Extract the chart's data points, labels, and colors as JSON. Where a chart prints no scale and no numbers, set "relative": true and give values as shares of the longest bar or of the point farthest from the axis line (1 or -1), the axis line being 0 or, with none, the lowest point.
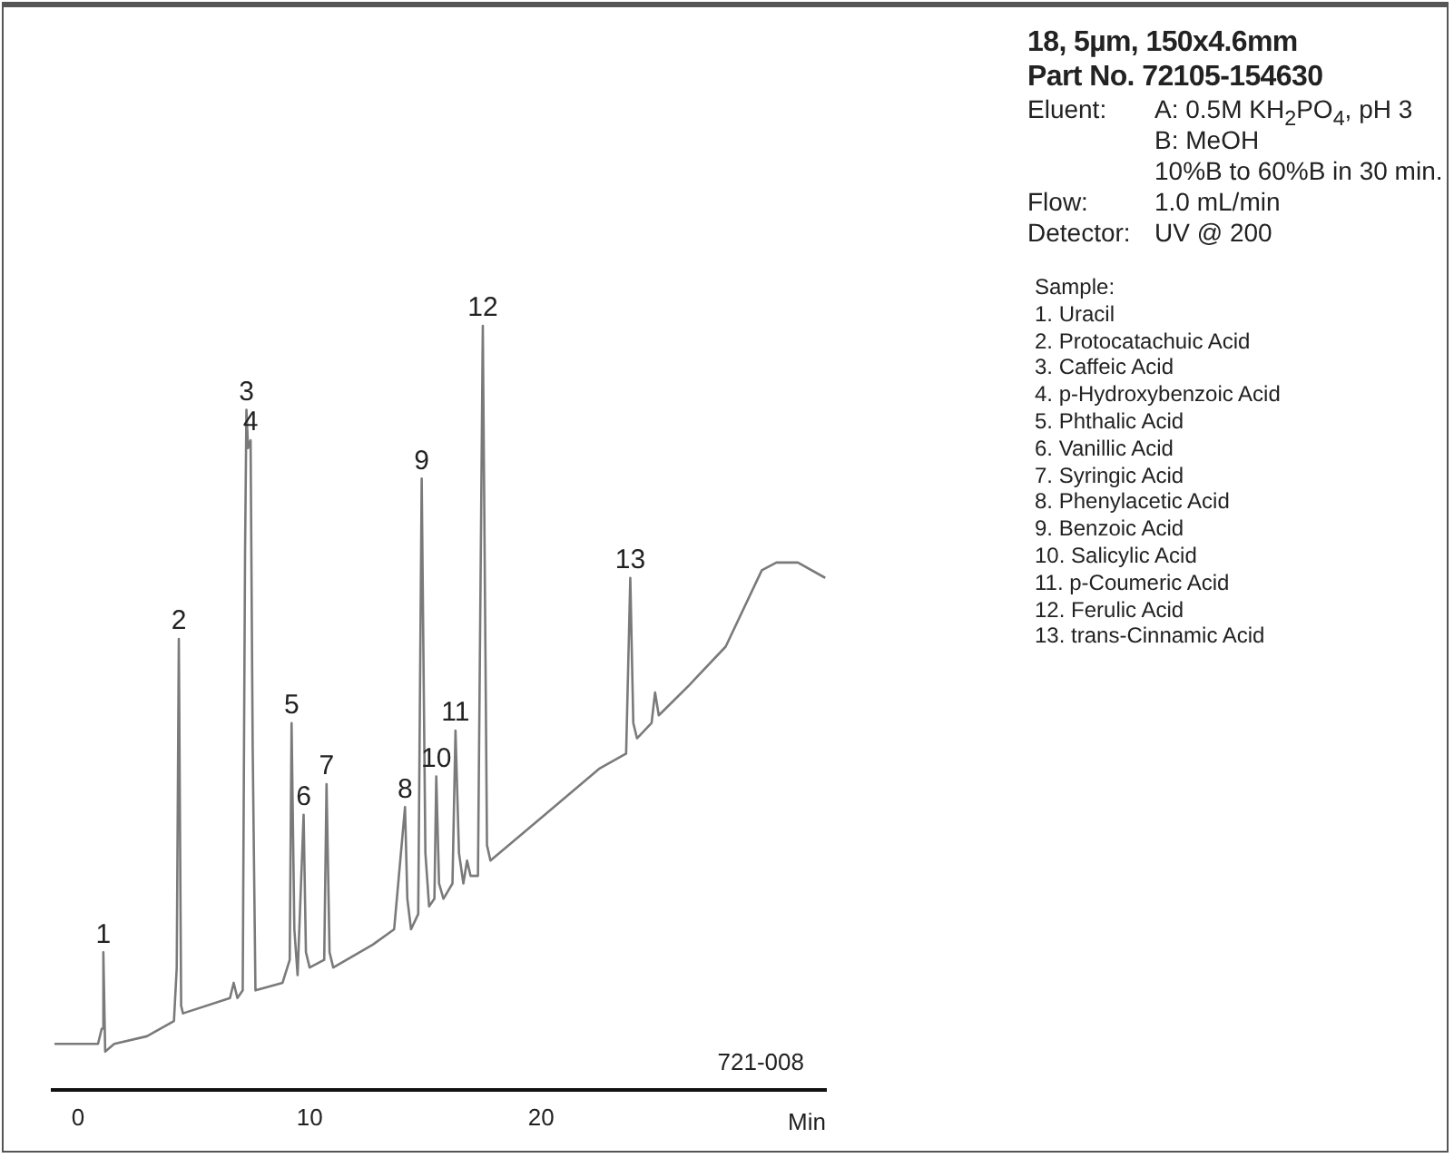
{
  "chart_data": {
    "type": "line",
    "title": "18, 5µm, 150x4.6mm",
    "subtitle": "Part No. 72105-154630",
    "xlabel": "Min",
    "relative": true,
    "grid": false,
    "legend": false,
    "marker": "none",
    "line_style": "solid",
    "xlim": [
      -1.1,
      32.3
    ],
    "xticks": [
      0,
      10,
      20
    ],
    "series": [
      {
        "color": "#7a7a7a",
        "x": [
          -1.02,
          0.86,
          1.02,
          1.09,
          1.17,
          1.56,
          2.97,
          4.14,
          4.26,
          4.35,
          4.45,
          4.53,
          6.56,
          6.72,
          6.88,
          7.11,
          7.21,
          7.27,
          7.34,
          7.45,
          7.54,
          7.66,
          8.83,
          9.14,
          9.22,
          9.34,
          9.48,
          9.74,
          9.84,
          10.0,
          10.63,
          10.73,
          10.86,
          11.02,
          12.73,
          13.65,
          14.12,
          14.22,
          14.38,
          14.69,
          14.84,
          15.0,
          15.16,
          15.39,
          15.47,
          15.59,
          15.78,
          16.17,
          16.3,
          16.45,
          16.64,
          16.8,
          16.95,
          17.27,
          17.48,
          17.66,
          17.81,
          20.16,
          22.5,
          23.67,
          23.85,
          23.98,
          24.14,
          24.77,
          24.92,
          25.08,
          26.41,
          27.97,
          29.53,
          30.16,
          31.09,
          32.27
        ],
        "values": [
          0.06,
          0.06,
          0.08,
          0.18,
          0.05,
          0.06,
          0.07,
          0.09,
          0.16,
          0.59,
          0.11,
          0.1,
          0.12,
          0.14,
          0.12,
          0.13,
          0.7,
          0.89,
          0.84,
          0.85,
          0.45,
          0.13,
          0.14,
          0.17,
          0.48,
          0.21,
          0.15,
          0.36,
          0.18,
          0.16,
          0.17,
          0.4,
          0.18,
          0.16,
          0.19,
          0.21,
          0.37,
          0.25,
          0.21,
          0.23,
          0.8,
          0.31,
          0.24,
          0.25,
          0.41,
          0.27,
          0.25,
          0.27,
          0.47,
          0.31,
          0.27,
          0.3,
          0.28,
          0.28,
          1.0,
          0.32,
          0.3,
          0.36,
          0.42,
          0.44,
          0.67,
          0.48,
          0.46,
          0.48,
          0.52,
          0.49,
          0.53,
          0.58,
          0.68,
          0.69,
          0.69,
          0.67
        ]
      }
    ],
    "annotations": [
      {
        "text": "1",
        "x": 1.09,
        "y": 0.18
      },
      {
        "text": "2",
        "x": 4.35,
        "y": 0.59
      },
      {
        "text": "3",
        "x": 7.27,
        "y": 0.89
      },
      {
        "text": "4",
        "x": 7.45,
        "y": 0.85
      },
      {
        "text": "5",
        "x": 9.22,
        "y": 0.48
      },
      {
        "text": "6",
        "x": 9.74,
        "y": 0.36
      },
      {
        "text": "7",
        "x": 10.73,
        "y": 0.4
      },
      {
        "text": "8",
        "x": 14.12,
        "y": 0.37
      },
      {
        "text": "9",
        "x": 14.84,
        "y": 0.8
      },
      {
        "text": "10",
        "x": 15.47,
        "y": 0.41
      },
      {
        "text": "11",
        "x": 16.3,
        "y": 0.47
      },
      {
        "text": "12",
        "x": 17.48,
        "y": 1.0
      },
      {
        "text": "13",
        "x": 23.85,
        "y": 0.67
      },
      "Eluent:\tA: 0.5M KH$_{2}$PO$_{4}$, pH 3",
      "\tB: MeOH",
      "\t10%B to 60%B in 30 min.",
      "Flow:\t1.0 mL/min",
      "Detector:\tUV @ 200",
      "Sample:",
      "1. Uracil",
      "2. Protocatachuic Acid",
      "3. Caffeic Acid",
      "4. p-Hydroxybenzoic Acid",
      "5. Phthalic Acid",
      "6. Vanillic Acid",
      "7. Syringic Acid",
      "8. Phenylacetic Acid",
      "9. Benzoic Acid",
      "10. Salicylic Acid",
      "11. p-Coumeric Acid",
      "12. Ferulic Acid",
      "13. trans-Cinnamic Acid",
      "721-008"
    ]
  }
}
